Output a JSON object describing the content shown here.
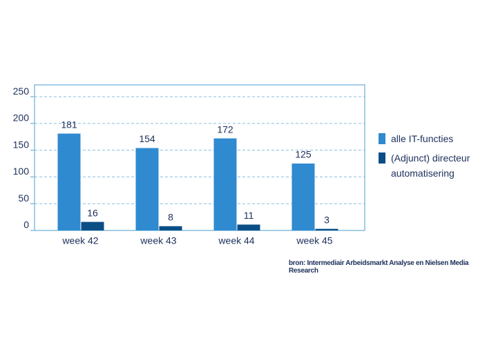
{
  "chart_data": {
    "type": "bar",
    "categories": [
      "week 42",
      "week 43",
      "week 44",
      "week 45"
    ],
    "series": [
      {
        "name": "alle IT-functies",
        "color": "#2f8ad0",
        "values": [
          181,
          154,
          172,
          125
        ]
      },
      {
        "name": "(Adjunct) directeur automatisering",
        "color": "#0b4e86",
        "values": [
          16,
          8,
          11,
          3
        ]
      }
    ],
    "ylim": [
      0,
      272
    ],
    "yticks": [
      0,
      50,
      100,
      150,
      200,
      250
    ],
    "grid": true,
    "legend": "right",
    "source": "bron: Intermediair Arbeidsmarkt Analyse en Nielsen Media Research"
  }
}
